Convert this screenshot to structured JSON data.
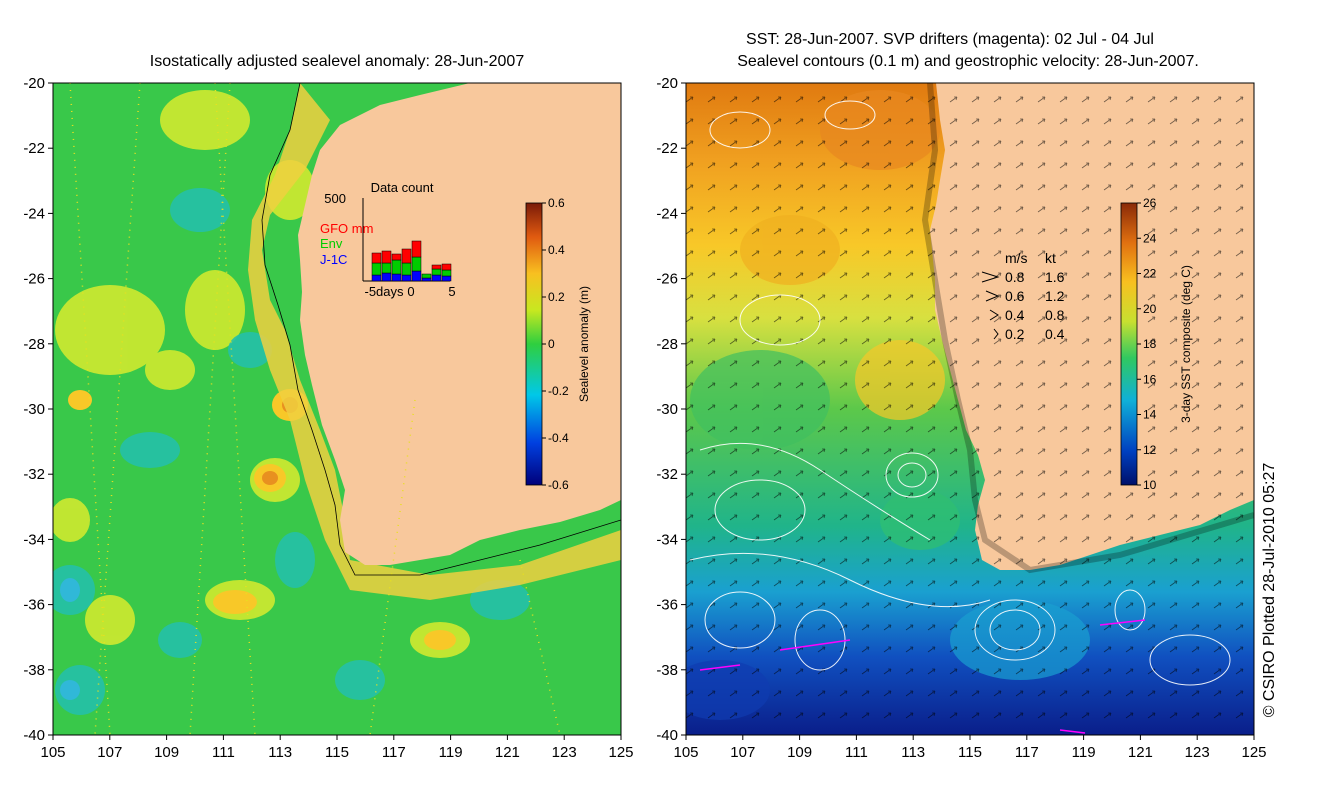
{
  "left_panel": {
    "title": "Isostatically adjusted sealevel anomaly: 28-Jun-2007",
    "colorbar": {
      "label": "Sealevel anomaly (m)",
      "ticks": [
        "0.6",
        "0.4",
        "0.2",
        "0",
        "-0.2",
        "-0.4",
        "-0.6"
      ],
      "range": [
        -0.6,
        0.6
      ]
    },
    "inset": {
      "title": "Data count",
      "ymax_label": "500",
      "x_labels": [
        "-5days",
        "0",
        "5"
      ],
      "legend": [
        {
          "label": "GFO mm",
          "color": "#ff0000"
        },
        {
          "label": "Env",
          "color": "#00cc00"
        },
        {
          "label": "J-1C",
          "color": "#0000ff"
        }
      ]
    }
  },
  "right_panel": {
    "title_line1": "SST: 28-Jun-2007. SVP drifters (magenta): 02 Jul - 04 Jul",
    "title_line2": "Sealevel contours (0.1 m) and geostrophic velocity: 28-Jun-2007.",
    "colorbar": {
      "label": "3-day SST composite (deg C)",
      "ticks": [
        "26",
        "24",
        "22",
        "20",
        "18",
        "16",
        "14",
        "12",
        "10"
      ],
      "range": [
        10,
        27
      ]
    },
    "speed_legend": {
      "header_ms": "m/s",
      "header_kt": "kt",
      "rows": [
        {
          "ms": "0.8",
          "kt": "1.6"
        },
        {
          "ms": "0.6",
          "kt": "1.2"
        },
        {
          "ms": "0.4",
          "kt": "0.8"
        },
        {
          "ms": "0.2",
          "kt": "0.4"
        }
      ]
    }
  },
  "axes": {
    "lat_ticks": [
      "-20",
      "-22",
      "-24",
      "-26",
      "-28",
      "-30",
      "-32",
      "-34",
      "-36",
      "-38",
      "-40"
    ],
    "lon_ticks": [
      "105",
      "107",
      "109",
      "111",
      "113",
      "115",
      "117",
      "119",
      "121",
      "123",
      "125"
    ]
  },
  "credit": "© CSIRO Plotted 28-Jul-2010 05:27",
  "colors": {
    "land": "#f8c89c",
    "sla_base": "#39c84a",
    "sst_warm": "#f0a020",
    "sst_cool": "#2a9adc"
  }
}
